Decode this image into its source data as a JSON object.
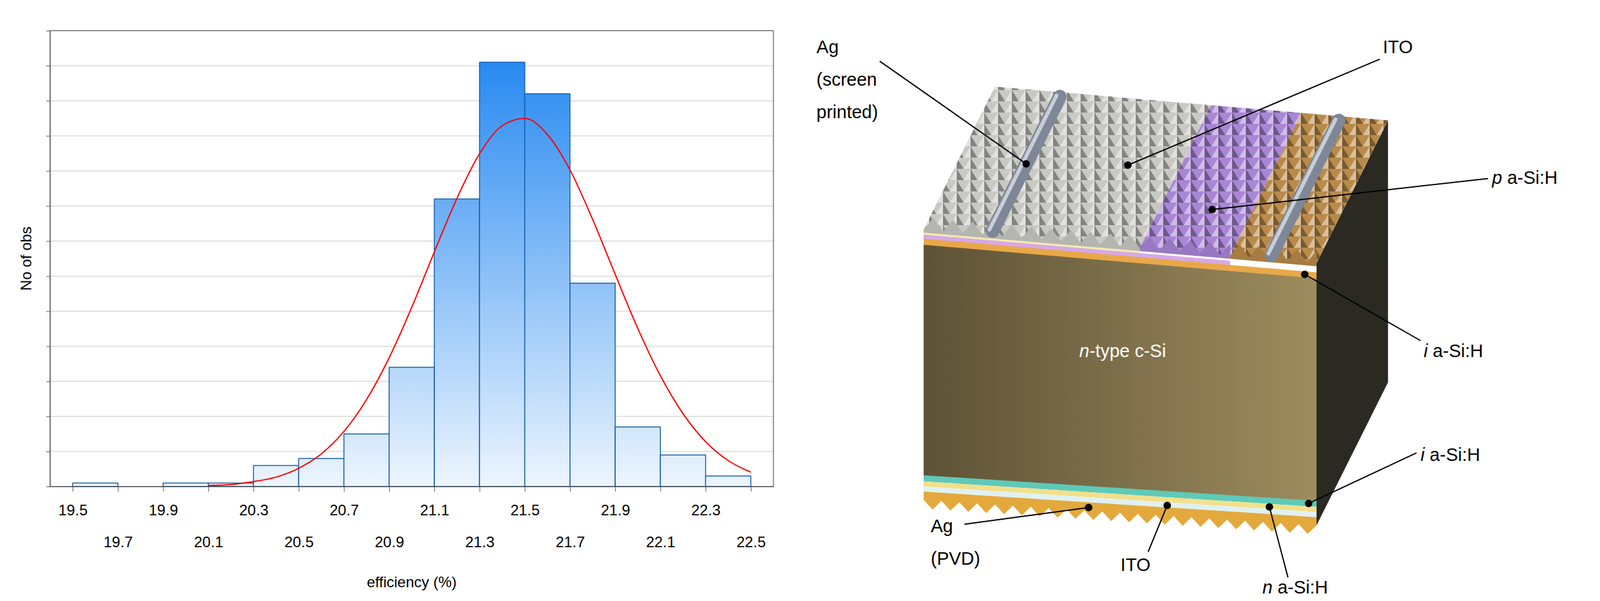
{
  "chart_data": {
    "type": "histogram",
    "xlabel": "efficiency (%)",
    "ylabel": "No of obs",
    "bins": [
      19.5,
      19.7,
      19.9,
      20.1,
      20.3,
      20.5,
      20.7,
      20.9,
      21.1,
      21.3,
      21.5,
      21.7,
      21.9,
      22.1,
      22.3,
      22.5
    ],
    "values": [
      1,
      0,
      1,
      1,
      6,
      8,
      15,
      34,
      82,
      121,
      112,
      58,
      17,
      9,
      3
    ],
    "color": "#1a82f0",
    "xlim": [
      19.4,
      22.6
    ],
    "xticks": [
      19.5,
      19.7,
      19.9,
      20.1,
      20.3,
      20.5,
      20.7,
      20.9,
      21.1,
      21.3,
      21.5,
      21.7,
      21.9,
      22.1,
      22.3,
      22.5
    ],
    "ylim": [
      0,
      130
    ],
    "yticks": [
      0,
      10,
      20,
      30,
      40,
      50,
      60,
      70,
      80,
      90,
      100,
      110,
      120,
      130
    ],
    "grid": true,
    "tick_labels": "x",
    "series": [
      {
        "type": "line",
        "color": "#ff0000",
        "x": [
          20.1,
          20.2,
          20.3,
          20.4,
          20.5,
          20.6,
          20.7,
          20.8,
          20.9,
          21.0,
          21.1,
          21.2,
          21.3,
          21.4,
          21.5,
          21.6,
          21.7,
          21.8,
          21.9,
          22.0,
          22.1,
          22.2,
          22.3,
          22.4,
          22.5
        ],
        "values": [
          0.3,
          0.6,
          1.4,
          2.7,
          5.2,
          9.3,
          15.7,
          24.8,
          36.7,
          51.1,
          66.9,
          82.2,
          94.9,
          102.9,
          105,
          100.4,
          90.3,
          76.2,
          60.5,
          45.1,
          31.6,
          20.8,
          12.8,
          7.4,
          4.1
        ]
      }
    ]
  },
  "diagram": {
    "labels": [
      "Ag (screen printed)",
      "ITO",
      "p a-Si:H",
      "i a-Si:H",
      "n-type c-Si",
      "i a-Si:H",
      "Ag (PVD)",
      "ITO",
      "n a-Si:H"
    ]
  }
}
